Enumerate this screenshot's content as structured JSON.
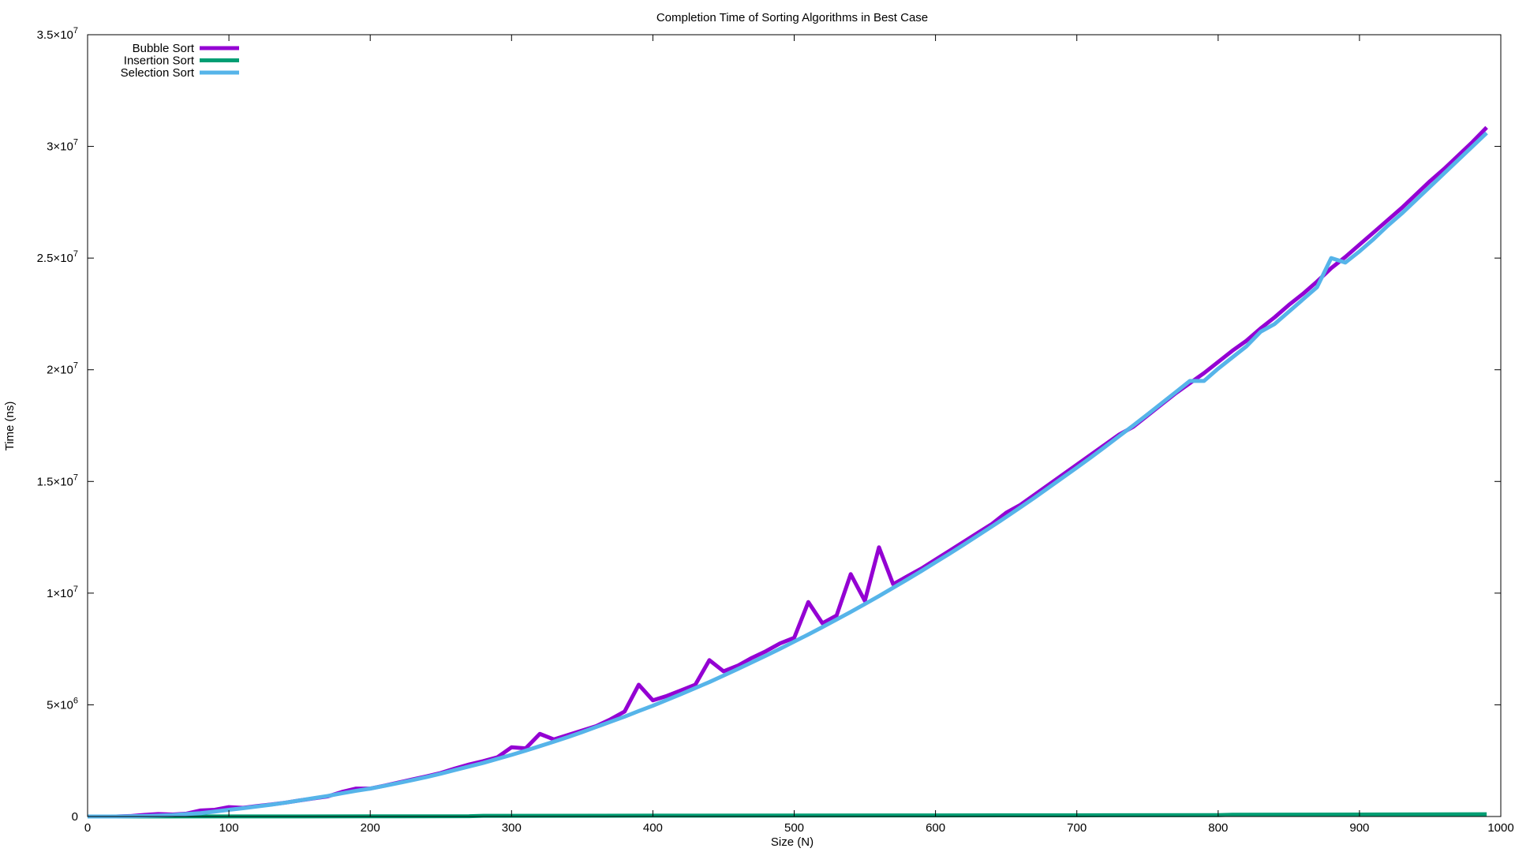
{
  "chart_data": {
    "type": "line",
    "title": "Completion Time of Sorting Algorithms in Best Case",
    "xlabel": "Size (N)",
    "ylabel": "Time (ns)",
    "xlim": [
      0,
      1000
    ],
    "ylim": [
      0,
      35000000
    ],
    "x_ticks": [
      0,
      100,
      200,
      300,
      400,
      500,
      600,
      700,
      800,
      900,
      1000
    ],
    "y_ticks": [
      {
        "value": 0,
        "base": "0",
        "exp": ""
      },
      {
        "value": 5000000,
        "base": "5×10",
        "exp": "6"
      },
      {
        "value": 10000000,
        "base": "1×10",
        "exp": "7"
      },
      {
        "value": 15000000,
        "base": "1.5×10",
        "exp": "7"
      },
      {
        "value": 20000000,
        "base": "2×10",
        "exp": "7"
      },
      {
        "value": 25000000,
        "base": "2.5×10",
        "exp": "7"
      },
      {
        "value": 30000000,
        "base": "3×10",
        "exp": "7"
      },
      {
        "value": 35000000,
        "base": "3.5×10",
        "exp": "7"
      }
    ],
    "grid": false,
    "legend": "top-left",
    "series": [
      {
        "name": "Bubble Sort",
        "color": "#9400d3",
        "points": [
          [
            0,
            0
          ],
          [
            10,
            0
          ],
          [
            20,
            0
          ],
          [
            30,
            20000
          ],
          [
            40,
            70000
          ],
          [
            50,
            110000
          ],
          [
            60,
            90000
          ],
          [
            70,
            130000
          ],
          [
            80,
            270000
          ],
          [
            90,
            300000
          ],
          [
            100,
            420000
          ],
          [
            110,
            390000
          ],
          [
            120,
            470000
          ],
          [
            130,
            540000
          ],
          [
            140,
            620000
          ],
          [
            150,
            720000
          ],
          [
            160,
            810000
          ],
          [
            170,
            900000
          ],
          [
            180,
            1100000
          ],
          [
            190,
            1250000
          ],
          [
            200,
            1250000
          ],
          [
            210,
            1380000
          ],
          [
            220,
            1520000
          ],
          [
            230,
            1660000
          ],
          [
            240,
            1800000
          ],
          [
            250,
            1950000
          ],
          [
            260,
            2150000
          ],
          [
            270,
            2330000
          ],
          [
            280,
            2480000
          ],
          [
            290,
            2650000
          ],
          [
            300,
            3100000
          ],
          [
            310,
            3050000
          ],
          [
            320,
            3700000
          ],
          [
            330,
            3450000
          ],
          [
            340,
            3650000
          ],
          [
            350,
            3850000
          ],
          [
            360,
            4050000
          ],
          [
            370,
            4350000
          ],
          [
            380,
            4700000
          ],
          [
            390,
            5900000
          ],
          [
            400,
            5200000
          ],
          [
            410,
            5400000
          ],
          [
            420,
            5650000
          ],
          [
            430,
            5900000
          ],
          [
            440,
            7000000
          ],
          [
            450,
            6500000
          ],
          [
            460,
            6750000
          ],
          [
            470,
            7100000
          ],
          [
            480,
            7400000
          ],
          [
            490,
            7750000
          ],
          [
            500,
            8000000
          ],
          [
            510,
            9600000
          ],
          [
            520,
            8650000
          ],
          [
            530,
            9000000
          ],
          [
            540,
            10850000
          ],
          [
            550,
            9650000
          ],
          [
            560,
            12050000
          ],
          [
            570,
            10400000
          ],
          [
            580,
            10750000
          ],
          [
            590,
            11100000
          ],
          [
            600,
            11500000
          ],
          [
            610,
            11900000
          ],
          [
            620,
            12300000
          ],
          [
            630,
            12700000
          ],
          [
            640,
            13100000
          ],
          [
            650,
            13600000
          ],
          [
            660,
            13950000
          ],
          [
            670,
            14400000
          ],
          [
            680,
            14850000
          ],
          [
            690,
            15300000
          ],
          [
            700,
            15750000
          ],
          [
            710,
            16200000
          ],
          [
            720,
            16650000
          ],
          [
            730,
            17100000
          ],
          [
            740,
            17450000
          ],
          [
            750,
            17950000
          ],
          [
            760,
            18450000
          ],
          [
            770,
            18950000
          ],
          [
            780,
            19400000
          ],
          [
            790,
            19850000
          ],
          [
            800,
            20350000
          ],
          [
            810,
            20850000
          ],
          [
            820,
            21300000
          ],
          [
            830,
            21850000
          ],
          [
            840,
            22350000
          ],
          [
            850,
            22900000
          ],
          [
            860,
            23400000
          ],
          [
            870,
            23950000
          ],
          [
            880,
            24550000
          ],
          [
            890,
            25050000
          ],
          [
            900,
            25600000
          ],
          [
            910,
            26150000
          ],
          [
            920,
            26700000
          ],
          [
            930,
            27250000
          ],
          [
            940,
            27850000
          ],
          [
            950,
            28450000
          ],
          [
            960,
            29000000
          ],
          [
            970,
            29600000
          ],
          [
            980,
            30200000
          ],
          [
            990,
            30850000
          ]
        ]
      },
      {
        "name": "Insertion Sort",
        "color": "#009e73",
        "points": [
          [
            0,
            0
          ],
          [
            100,
            5000
          ],
          [
            200,
            8000
          ],
          [
            270,
            12000
          ],
          [
            280,
            30000
          ],
          [
            400,
            38000
          ],
          [
            500,
            45000
          ],
          [
            600,
            50000
          ],
          [
            700,
            55000
          ],
          [
            800,
            62000
          ],
          [
            810,
            80000
          ],
          [
            900,
            90000
          ],
          [
            990,
            100000
          ]
        ]
      },
      {
        "name": "Selection Sort",
        "color": "#56b4e9",
        "points": [
          [
            0,
            0
          ],
          [
            10,
            0
          ],
          [
            20,
            0
          ],
          [
            30,
            10000
          ],
          [
            40,
            20000
          ],
          [
            50,
            40000
          ],
          [
            60,
            60000
          ],
          [
            70,
            110000
          ],
          [
            80,
            150000
          ],
          [
            90,
            220000
          ],
          [
            100,
            300000
          ],
          [
            110,
            370000
          ],
          [
            120,
            450000
          ],
          [
            130,
            530000
          ],
          [
            140,
            620000
          ],
          [
            150,
            720000
          ],
          [
            160,
            820000
          ],
          [
            170,
            920000
          ],
          [
            180,
            1040000
          ],
          [
            190,
            1150000
          ],
          [
            200,
            1250000
          ],
          [
            210,
            1370000
          ],
          [
            220,
            1500000
          ],
          [
            230,
            1630000
          ],
          [
            240,
            1770000
          ],
          [
            250,
            1920000
          ],
          [
            260,
            2080000
          ],
          [
            270,
            2240000
          ],
          [
            280,
            2400000
          ],
          [
            290,
            2580000
          ],
          [
            300,
            2760000
          ],
          [
            310,
            2950000
          ],
          [
            320,
            3150000
          ],
          [
            330,
            3350000
          ],
          [
            340,
            3560000
          ],
          [
            350,
            3780000
          ],
          [
            360,
            4010000
          ],
          [
            370,
            4240000
          ],
          [
            380,
            4470000
          ],
          [
            390,
            4720000
          ],
          [
            400,
            4960000
          ],
          [
            410,
            5220000
          ],
          [
            420,
            5480000
          ],
          [
            430,
            5750000
          ],
          [
            440,
            6020000
          ],
          [
            450,
            6310000
          ],
          [
            460,
            6600000
          ],
          [
            470,
            6900000
          ],
          [
            480,
            7200000
          ],
          [
            490,
            7510000
          ],
          [
            500,
            7830000
          ],
          [
            510,
            8150000
          ],
          [
            520,
            8480000
          ],
          [
            530,
            8820000
          ],
          [
            540,
            9160000
          ],
          [
            550,
            9510000
          ],
          [
            560,
            9870000
          ],
          [
            570,
            10240000
          ],
          [
            580,
            10610000
          ],
          [
            590,
            10990000
          ],
          [
            600,
            11380000
          ],
          [
            610,
            11770000
          ],
          [
            620,
            12170000
          ],
          [
            630,
            12580000
          ],
          [
            640,
            12990000
          ],
          [
            650,
            13410000
          ],
          [
            660,
            13840000
          ],
          [
            670,
            14270000
          ],
          [
            680,
            14720000
          ],
          [
            690,
            15170000
          ],
          [
            700,
            15620000
          ],
          [
            710,
            16080000
          ],
          [
            720,
            16550000
          ],
          [
            730,
            17030000
          ],
          [
            740,
            17510000
          ],
          [
            750,
            18000000
          ],
          [
            760,
            18500000
          ],
          [
            770,
            19000000
          ],
          [
            780,
            19500000
          ],
          [
            790,
            19500000
          ],
          [
            800,
            20050000
          ],
          [
            810,
            20550000
          ],
          [
            820,
            21050000
          ],
          [
            830,
            21700000
          ],
          [
            840,
            22050000
          ],
          [
            850,
            22600000
          ],
          [
            860,
            23150000
          ],
          [
            870,
            23700000
          ],
          [
            880,
            25000000
          ],
          [
            890,
            24800000
          ],
          [
            900,
            25300000
          ],
          [
            910,
            25850000
          ],
          [
            920,
            26450000
          ],
          [
            930,
            27000000
          ],
          [
            940,
            27600000
          ],
          [
            950,
            28200000
          ],
          [
            960,
            28800000
          ],
          [
            970,
            29400000
          ],
          [
            980,
            30000000
          ],
          [
            990,
            30600000
          ]
        ]
      }
    ]
  }
}
